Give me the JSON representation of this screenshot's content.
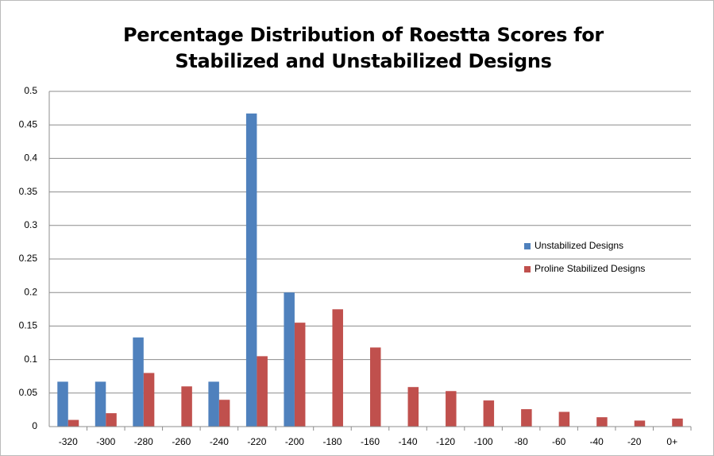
{
  "chart_data": {
    "type": "bar",
    "title": "Percentage Distribution of Roestta Scores for Stabilized and Unstabilized Designs",
    "categories": [
      "-320",
      "-300",
      "-280",
      "-260",
      "-240",
      "-220",
      "-200",
      "-180",
      "-160",
      "-140",
      "-120",
      "-100",
      "-80",
      "-60",
      "-40",
      "-20",
      "0+"
    ],
    "series": [
      {
        "name": "Unstabilized Designs",
        "color": "#4f81bd",
        "values": [
          0.067,
          0.067,
          0.133,
          0,
          0.067,
          0.467,
          0.2,
          0,
          0,
          0,
          0,
          0,
          0,
          0,
          0,
          0,
          0
        ]
      },
      {
        "name": "Proline Stabilized Designs",
        "color": "#c0504d",
        "values": [
          0.01,
          0.02,
          0.08,
          0.06,
          0.04,
          0.105,
          0.155,
          0.175,
          0.118,
          0.059,
          0.053,
          0.039,
          0.026,
          0.022,
          0.014,
          0.009,
          0.012
        ]
      }
    ],
    "ylim": [
      0,
      0.5
    ],
    "yticks": [
      0,
      0.05,
      0.1,
      0.15,
      0.2,
      0.25,
      0.3,
      0.35,
      0.4,
      0.45,
      0.5
    ],
    "grid": true,
    "legend": "right"
  }
}
